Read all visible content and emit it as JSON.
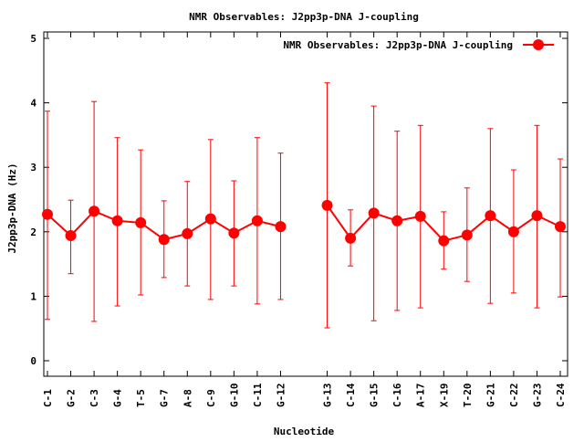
{
  "chart_data": {
    "type": "line",
    "title": "NMR Observables: J2pp3p-DNA J-coupling",
    "xlabel": "Nucleotide",
    "ylabel": "J2pp3p-DNA (Hz)",
    "ylim": [
      -0.25,
      5
    ],
    "yticks": [
      "0",
      "1",
      "2",
      "3",
      "4",
      "5"
    ],
    "legend": {
      "label": "NMR Observables: J2pp3p-DNA J-coupling",
      "placement": "top-right"
    },
    "color": "#ff0000",
    "categories": [
      "C-1",
      "G-2",
      "C-3",
      "G-4",
      "T-5",
      "G-7",
      "A-8",
      "C-9",
      "G-10",
      "C-11",
      "G-12",
      "",
      "G-13",
      "C-14",
      "G-15",
      "C-16",
      "A-17",
      "X-19",
      "T-20",
      "G-21",
      "C-22",
      "G-23",
      "C-24"
    ],
    "series": [
      {
        "name": "NMR Observables: J2pp3p-DNA J-coupling",
        "values": [
          2.27,
          1.94,
          2.32,
          2.17,
          2.14,
          1.88,
          1.97,
          2.2,
          1.98,
          2.17,
          2.08,
          null,
          2.41,
          1.9,
          2.29,
          2.17,
          2.24,
          1.86,
          1.95,
          2.25,
          2.0,
          2.25,
          2.08
        ],
        "err_high": [
          3.87,
          2.49,
          4.02,
          3.46,
          3.27,
          2.48,
          2.78,
          3.43,
          2.79,
          3.46,
          3.22,
          null,
          4.31,
          2.34,
          3.95,
          3.56,
          3.65,
          2.31,
          2.68,
          3.6,
          2.96,
          3.65,
          3.13
        ],
        "err_low": [
          0.64,
          1.35,
          0.61,
          0.85,
          1.02,
          1.29,
          1.16,
          0.95,
          1.16,
          0.88,
          0.95,
          null,
          0.51,
          1.47,
          0.62,
          0.78,
          0.82,
          1.42,
          1.23,
          0.89,
          1.05,
          0.82,
          0.99
        ]
      }
    ]
  }
}
